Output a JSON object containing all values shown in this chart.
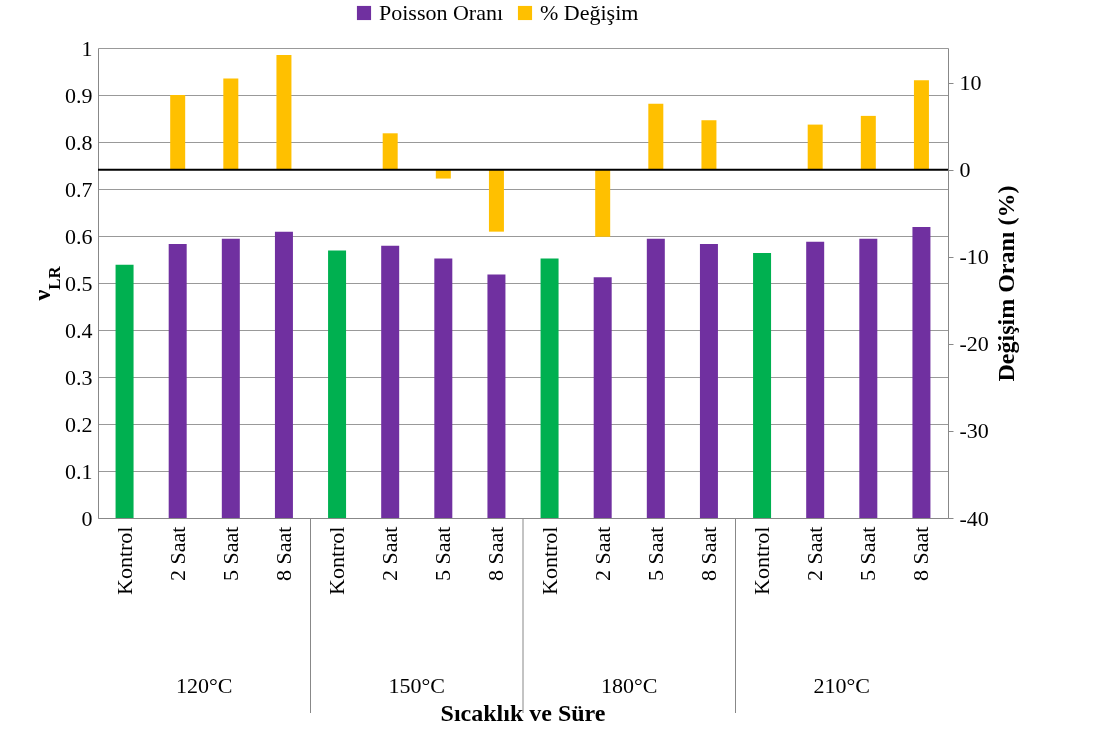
{
  "chart_data": {
    "type": "bar",
    "xlabel": "Sıcaklık ve Süre",
    "ylabel": "ν$_{LR}$",
    "y2label": "Değişim Oranı (%)",
    "categories": [
      "Kontrol",
      "2 Saat",
      "5 Saat",
      "8 Saat",
      "Kontrol",
      "2 Saat",
      "5 Saat",
      "8 Saat",
      "Kontrol",
      "2 Saat",
      "5 Saat",
      "8 Saat",
      "Kontrol",
      "2 Saat",
      "5 Saat",
      "8 Saat"
    ],
    "annotations": [
      "120°C",
      "150°C",
      "180°C",
      "210°C"
    ],
    "series": [
      {
        "name": "Poisson Oranı",
        "color": "#7030a0",
        "colors": [
          "#00b050",
          "#7030a0",
          "#7030a0",
          "#7030a0",
          "#00b050",
          "#7030a0",
          "#7030a0",
          "#7030a0",
          "#00b050",
          "#7030a0",
          "#7030a0",
          "#7030a0",
          "#00b050",
          "#7030a0",
          "#7030a0",
          "#7030a0"
        ],
        "values": [
          0.539,
          0.583,
          0.594,
          0.609,
          0.569,
          0.579,
          0.552,
          0.518,
          0.552,
          0.512,
          0.594,
          0.583,
          0.564,
          0.588,
          0.594,
          0.619
        ]
      },
      {
        "name": "% Değişim",
        "color": "#ffc000",
        "axis": "y2",
        "values": [
          null,
          8.6,
          10.5,
          13.2,
          null,
          4.2,
          -1.0,
          -7.1,
          null,
          -7.7,
          7.6,
          5.7,
          null,
          5.2,
          6.2,
          10.3
        ]
      }
    ],
    "ylim": [
      0,
      1
    ],
    "yticks": [
      0,
      0.1,
      0.2,
      0.3,
      0.4,
      0.5,
      0.6,
      0.7,
      0.8,
      0.9,
      1
    ],
    "y2lim": [
      -40,
      14
    ],
    "y2ticks": [
      -40,
      -30,
      -20,
      -10,
      0,
      10
    ],
    "ref_lines": [
      {
        "axis": "y2",
        "value": 0,
        "color": "#000000"
      }
    ],
    "grid": "y",
    "legend": "top"
  }
}
